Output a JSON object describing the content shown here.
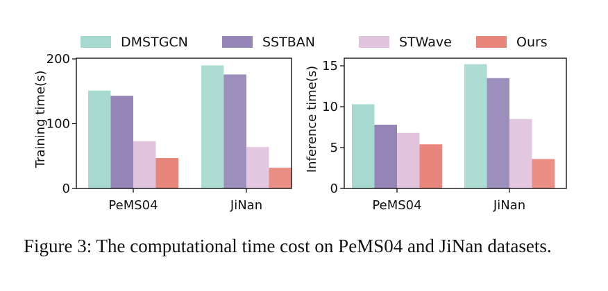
{
  "legend": [
    {
      "name": "DMSTGCN",
      "color": "#a6d9cf"
    },
    {
      "name": "SSTBAN",
      "color": "#9585b6"
    },
    {
      "name": "STWave",
      "color": "#e2c3de"
    },
    {
      "name": "Ours",
      "color": "#e8867b"
    }
  ],
  "chart_data": [
    {
      "type": "bar",
      "title": "",
      "xlabel": "",
      "ylabel": "Training time(s)",
      "categories": [
        "PeMS04",
        "JiNan"
      ],
      "ylim": [
        0,
        200
      ],
      "yticks": [
        0,
        100,
        200
      ],
      "series": [
        {
          "name": "DMSTGCN",
          "values": [
            151,
            190
          ]
        },
        {
          "name": "SSTBAN",
          "values": [
            143,
            176
          ]
        },
        {
          "name": "STWave",
          "values": [
            73,
            64
          ]
        },
        {
          "name": "Ours",
          "values": [
            47,
            32
          ]
        }
      ]
    },
    {
      "type": "bar",
      "title": "",
      "xlabel": "",
      "ylabel": "Inference time(s)",
      "categories": [
        "PeMS04",
        "JiNan"
      ],
      "ylim": [
        0,
        16
      ],
      "yticks": [
        0,
        5,
        10,
        15
      ],
      "series": [
        {
          "name": "DMSTGCN",
          "values": [
            10.3,
            15.2
          ]
        },
        {
          "name": "SSTBAN",
          "values": [
            7.8,
            13.5
          ]
        },
        {
          "name": "STWave",
          "values": [
            6.8,
            8.5
          ]
        },
        {
          "name": "Ours",
          "values": [
            5.4,
            3.6
          ]
        }
      ]
    }
  ],
  "caption": "Figure 3: The computational time cost on PeMS04 and JiNan datasets."
}
